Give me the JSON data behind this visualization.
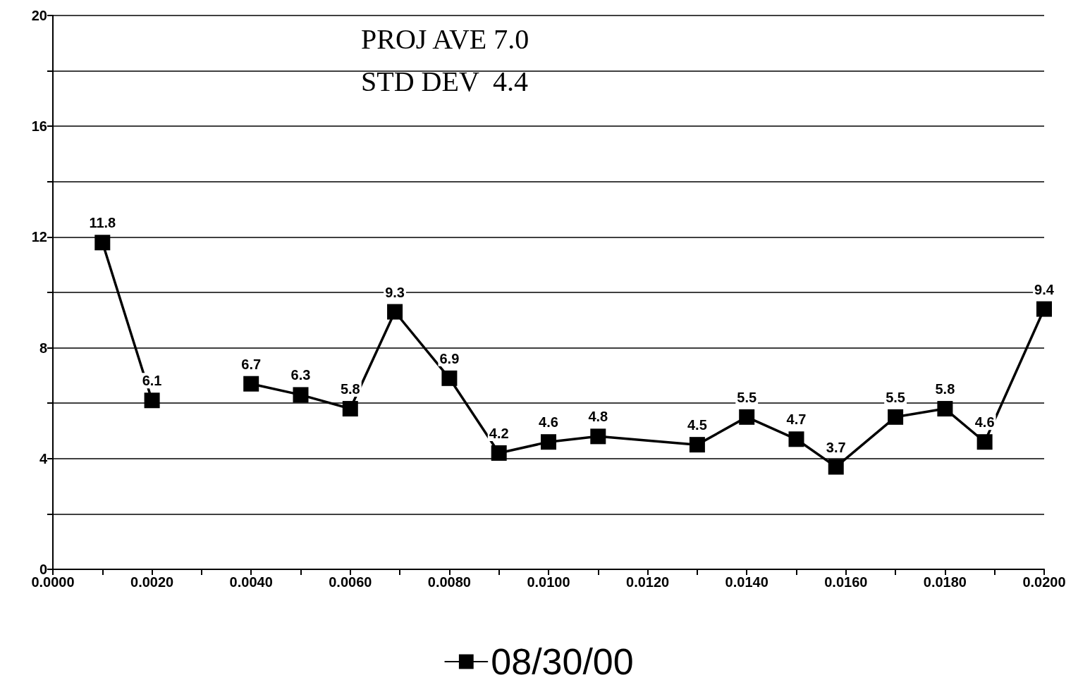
{
  "chart_data": {
    "type": "line",
    "x": [
      0.001,
      0.002,
      0.003,
      0.004,
      0.005,
      0.006,
      0.0069,
      0.008,
      0.009,
      0.01,
      0.011,
      0.013,
      0.014,
      0.015,
      0.0158,
      0.017,
      0.018,
      0.0188,
      0.02
    ],
    "series": [
      {
        "name": "08/30/00",
        "color": "#000000",
        "values": [
          11.8,
          6.1,
          null,
          6.7,
          6.3,
          5.8,
          9.3,
          6.9,
          4.2,
          4.6,
          4.8,
          4.5,
          5.5,
          4.7,
          3.7,
          5.5,
          5.8,
          4.6,
          9.4
        ]
      }
    ],
    "xlim": [
      0,
      0.02
    ],
    "xticks": [
      {
        "value": 0,
        "label": "0.0000"
      },
      {
        "value": 0.001,
        "label": null
      },
      {
        "value": 0.002,
        "label": "0.0020"
      },
      {
        "value": 0.003,
        "label": null
      },
      {
        "value": 0.004,
        "label": "0.0040"
      },
      {
        "value": 0.005,
        "label": null
      },
      {
        "value": 0.006,
        "label": "0.0060"
      },
      {
        "value": 0.007,
        "label": null
      },
      {
        "value": 0.008,
        "label": "0.0080"
      },
      {
        "value": 0.009,
        "label": null
      },
      {
        "value": 0.01,
        "label": "0.0100"
      },
      {
        "value": 0.011,
        "label": null
      },
      {
        "value": 0.012,
        "label": "0.0120"
      },
      {
        "value": 0.013,
        "label": null
      },
      {
        "value": 0.014,
        "label": "0.0140"
      },
      {
        "value": 0.015,
        "label": null
      },
      {
        "value": 0.016,
        "label": "0.0160"
      },
      {
        "value": 0.017,
        "label": null
      },
      {
        "value": 0.018,
        "label": "0.0180"
      },
      {
        "value": 0.019,
        "label": null
      },
      {
        "value": 0.02,
        "label": "0.0200"
      }
    ],
    "ylim": [
      0,
      20
    ],
    "yticks": [
      0,
      {
        "value": 2,
        "label": null
      },
      4,
      {
        "value": 6,
        "label": null
      },
      8,
      {
        "value": 10,
        "label": null
      },
      12,
      {
        "value": 14,
        "label": null
      },
      16,
      {
        "value": 18,
        "label": null
      },
      20
    ],
    "annotations": [
      "PROJ AVE 7.0",
      "STD DEV  4.4"
    ],
    "data_labels": true,
    "grid": "y",
    "legend": "bottom",
    "marker": "square",
    "line_style": "solid"
  }
}
